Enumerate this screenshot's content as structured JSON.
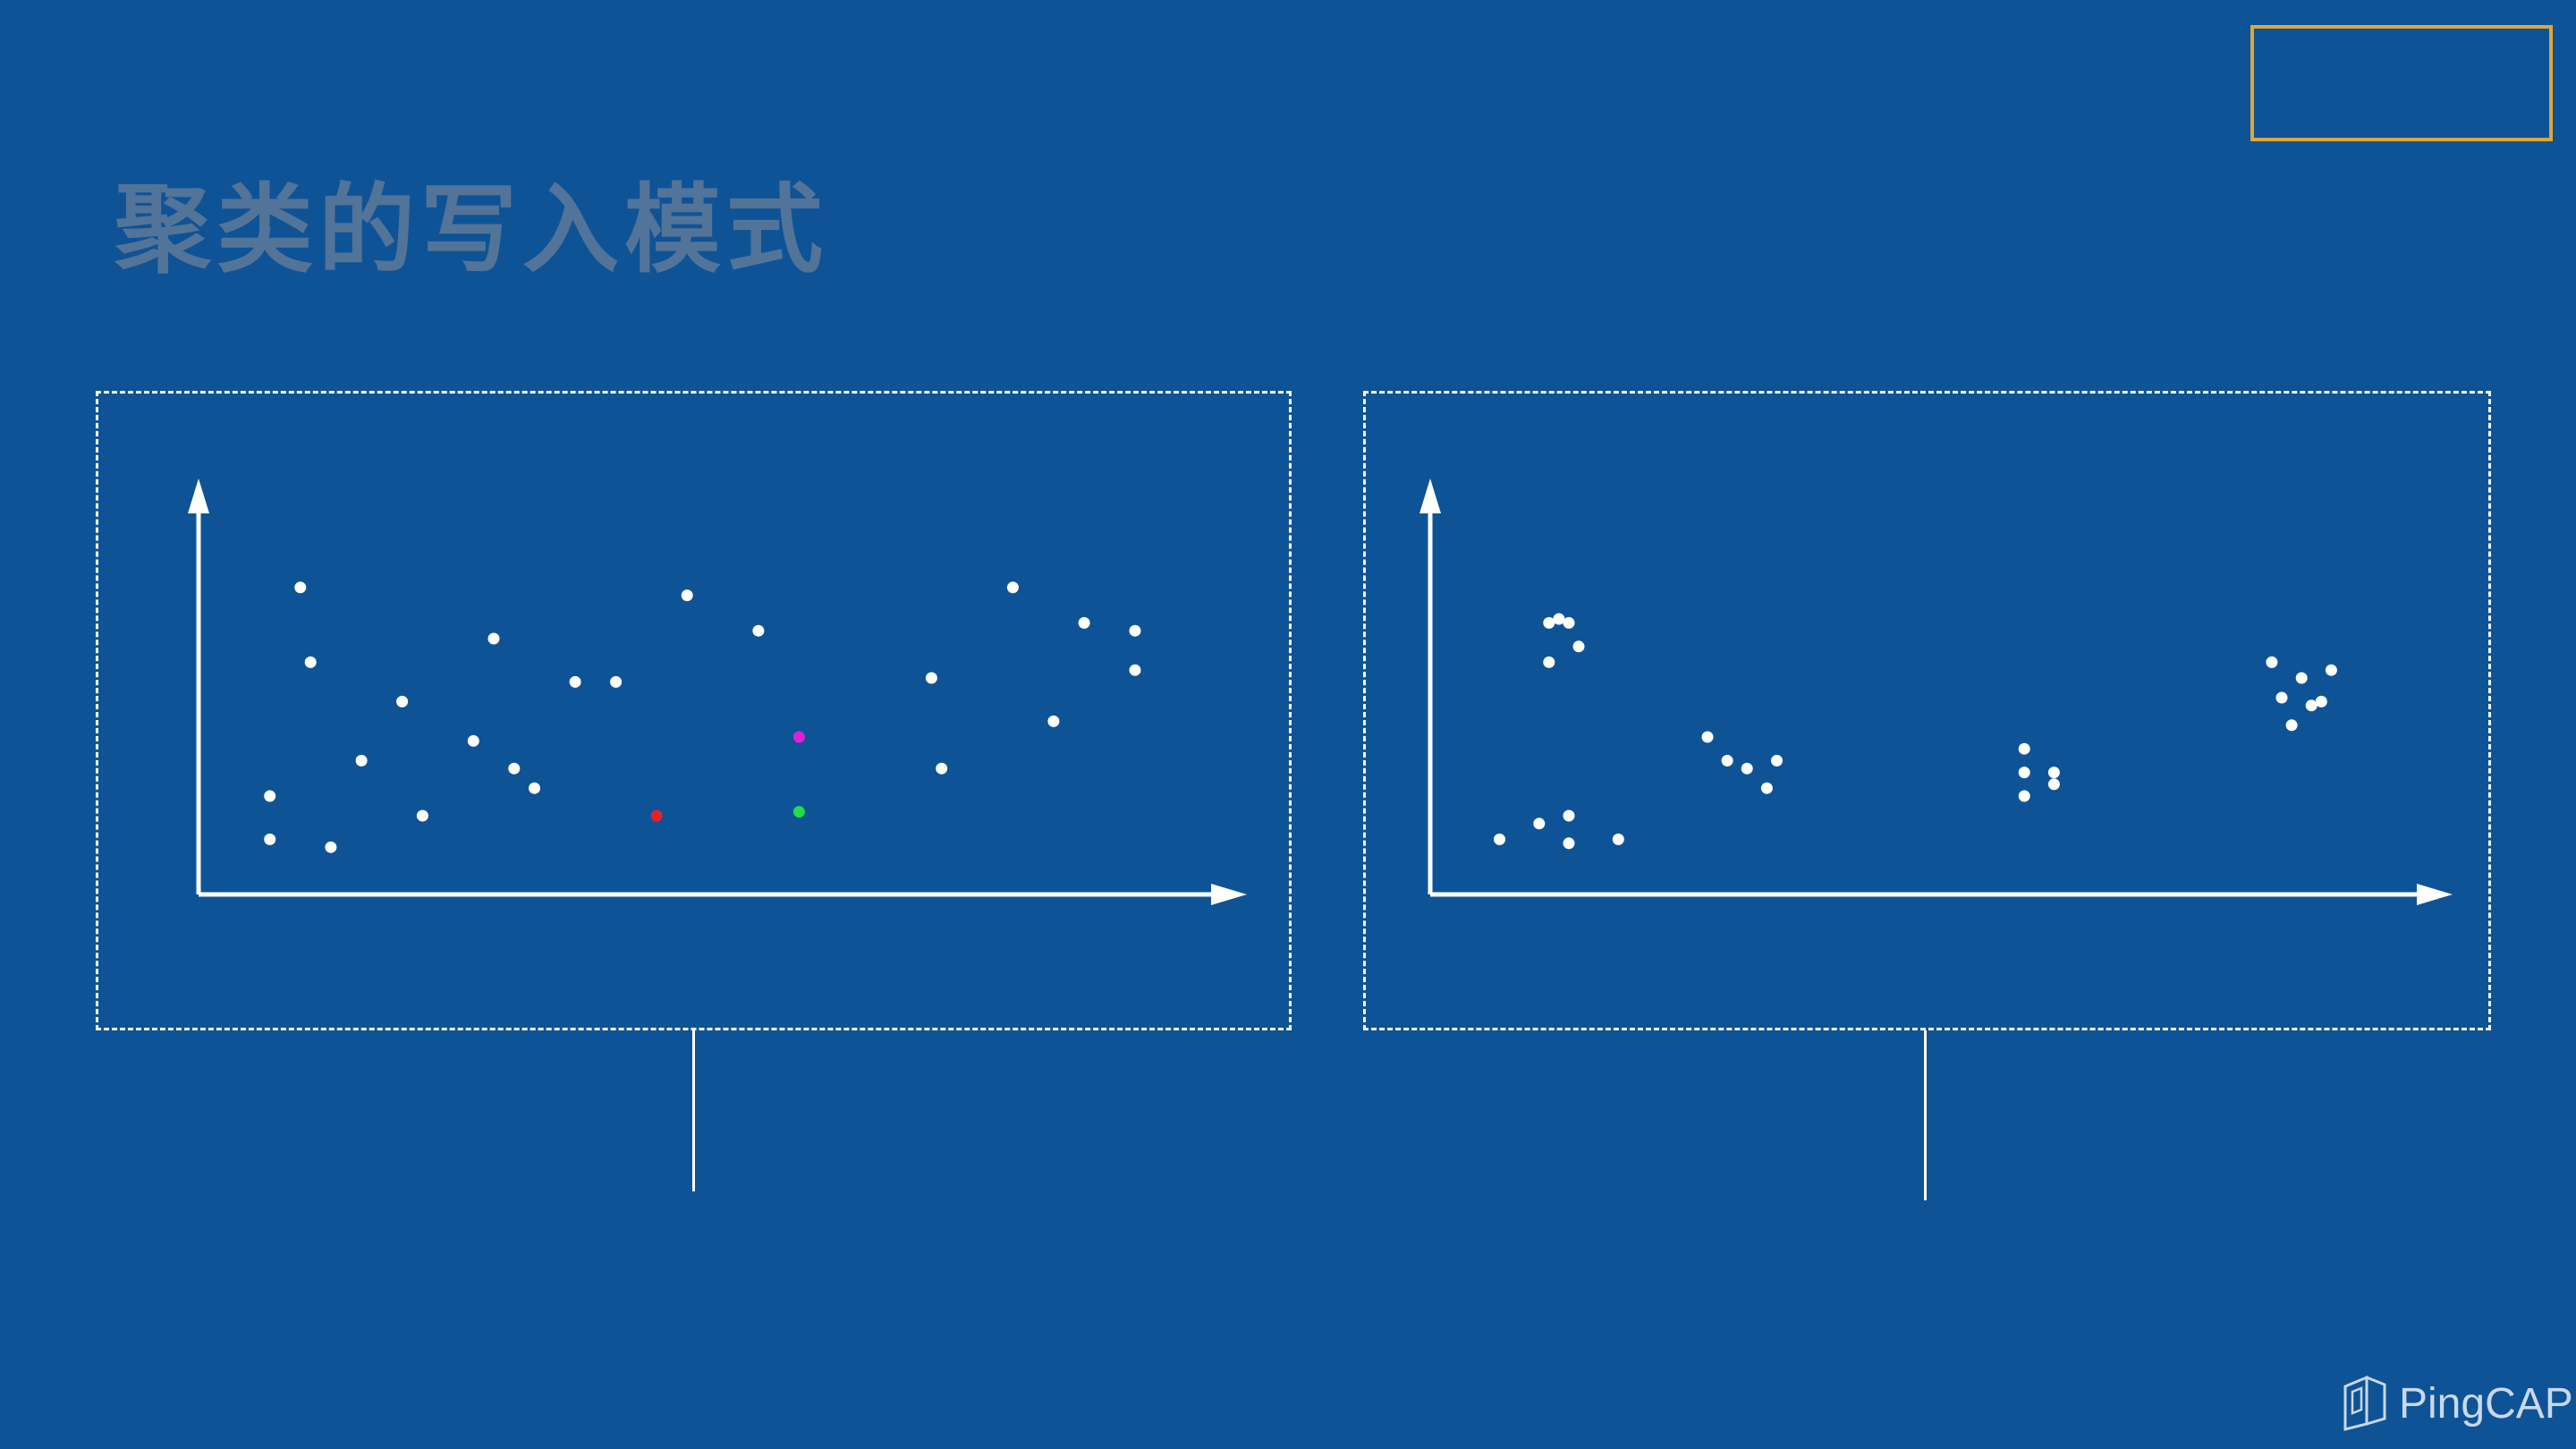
{
  "slide": {
    "title": "聚类的写入模式"
  },
  "logo": {
    "text": "PingCAP",
    "icon": "pingcap-logo-icon"
  },
  "colors": {
    "background": "#0e5396",
    "point": "#ffffff",
    "highlight_red": "#e8202a",
    "highlight_magenta": "#e020d8",
    "highlight_green": "#22dd44",
    "corner_box": "#e0a53a"
  },
  "chart_data": [
    {
      "type": "scatter",
      "title": "",
      "xlabel": "",
      "ylabel": "",
      "xlim": [
        0,
        100
      ],
      "ylim": [
        0,
        100
      ],
      "grid": false,
      "series": [
        {
          "color": "#ffffff",
          "points": [
            [
              10,
              78
            ],
            [
              11,
              59
            ],
            [
              7,
              25
            ],
            [
              7,
              14
            ],
            [
              13,
              12
            ],
            [
              16,
              34
            ],
            [
              20,
              49
            ],
            [
              22,
              20
            ],
            [
              27,
              39
            ],
            [
              29,
              65
            ],
            [
              31,
              32
            ],
            [
              33,
              27
            ],
            [
              37,
              54
            ],
            [
              41,
              54
            ],
            [
              48,
              76
            ],
            [
              55,
              67
            ],
            [
              72,
              55
            ],
            [
              73,
              32
            ],
            [
              80,
              78
            ],
            [
              84,
              44
            ],
            [
              87,
              69
            ],
            [
              92,
              67
            ],
            [
              92,
              57
            ]
          ]
        },
        {
          "color": "#e8202a",
          "points": [
            [
              45,
              20
            ]
          ]
        },
        {
          "color": "#e020d8",
          "points": [
            [
              59,
              40
            ]
          ]
        },
        {
          "color": "#22dd44",
          "points": [
            [
              59,
              21
            ]
          ]
        }
      ]
    },
    {
      "type": "scatter",
      "title": "",
      "xlabel": "",
      "ylabel": "",
      "xlim": [
        0,
        100
      ],
      "ylim": [
        0,
        100
      ],
      "grid": false,
      "series": [
        {
          "color": "#ffffff",
          "points": [
            [
              12,
              69
            ],
            [
              13,
              70
            ],
            [
              14,
              69
            ],
            [
              15,
              63
            ],
            [
              12,
              59
            ],
            [
              7,
              14
            ],
            [
              11,
              18
            ],
            [
              14,
              13
            ],
            [
              14,
              20
            ],
            [
              19,
              14
            ],
            [
              28,
              40
            ],
            [
              30,
              34
            ],
            [
              32,
              32
            ],
            [
              34,
              27
            ],
            [
              35,
              34
            ],
            [
              60,
              37
            ],
            [
              60,
              31
            ],
            [
              60,
              25
            ],
            [
              63,
              31
            ],
            [
              63,
              28
            ],
            [
              85,
              59
            ],
            [
              86,
              50
            ],
            [
              88,
              55
            ],
            [
              89,
              48
            ],
            [
              90,
              49
            ],
            [
              91,
              57
            ],
            [
              87,
              43
            ]
          ]
        }
      ]
    }
  ]
}
